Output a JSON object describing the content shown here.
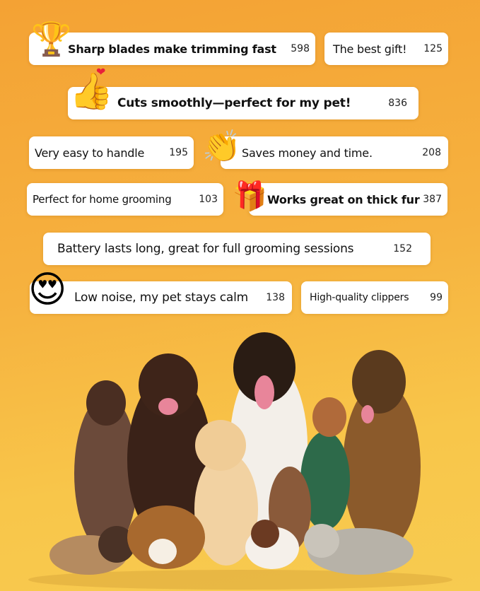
{
  "reviews": [
    {
      "text": "Sharp blades make trimming fast",
      "count": "598",
      "icon": "trophy-icon"
    },
    {
      "text": "The best gift!",
      "count": "125"
    },
    {
      "text": "Cuts smoothly—perfect for my pet!",
      "count": "836",
      "icon": "thumbs-up-heart-icon"
    },
    {
      "text": "Very easy to handle",
      "count": "195"
    },
    {
      "text": "Saves money and time.",
      "count": "208",
      "icon": "clapping-hands-icon"
    },
    {
      "text": "Perfect for home grooming",
      "count": "103"
    },
    {
      "text": "Works great on thick fur",
      "count": "387",
      "icon": "gift-box-icon"
    },
    {
      "text": "Battery lasts long, great for full grooming sessions",
      "count": "152"
    },
    {
      "text": "Low noise, my pet stays calm",
      "count": "138",
      "icon": "heart-eyes-emoji-icon"
    },
    {
      "text": "High-quality clippers",
      "count": "99"
    }
  ],
  "colors": {
    "background_top": "#F4A234",
    "background_bottom": "#F7CB50"
  }
}
